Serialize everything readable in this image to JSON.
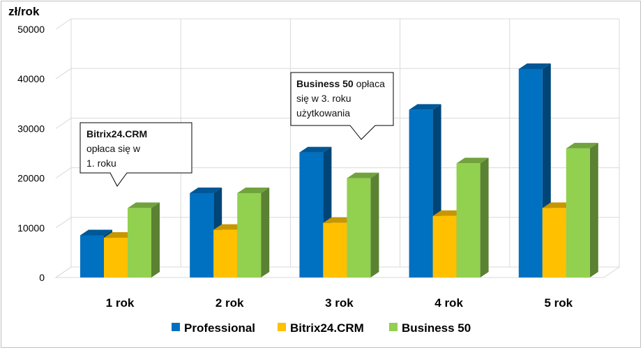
{
  "chart_data": {
    "type": "bar",
    "ylabel": "zł/rok",
    "ylim": [
      0,
      50000
    ],
    "yticks": [
      0,
      10000,
      20000,
      30000,
      40000,
      50000
    ],
    "categories": [
      "1 rok",
      "2 rok",
      "3 rok",
      "4 rok",
      "5 rok"
    ],
    "series": [
      {
        "name": "Professional",
        "color": "#0070c0",
        "values": [
          8500,
          17000,
          25200,
          33800,
          42000
        ]
      },
      {
        "name": "Bitrix24.CRM",
        "color": "#ffc000",
        "values": [
          8000,
          9600,
          11000,
          12400,
          14000
        ]
      },
      {
        "name": "Business 50",
        "color": "#92d050",
        "values": [
          14000,
          17000,
          20000,
          23000,
          26000
        ]
      }
    ],
    "grid": true,
    "legend": "bottom",
    "annotations": [
      {
        "bold": "Bitrix24.CRM",
        "line1_rest": "",
        "line2": "opłaca się w",
        "line3": "1. roku"
      },
      {
        "bold": "Business 50",
        "line1_rest": " opłaca",
        "line2": "się w 3. roku",
        "line3": "użytkowania"
      }
    ]
  }
}
